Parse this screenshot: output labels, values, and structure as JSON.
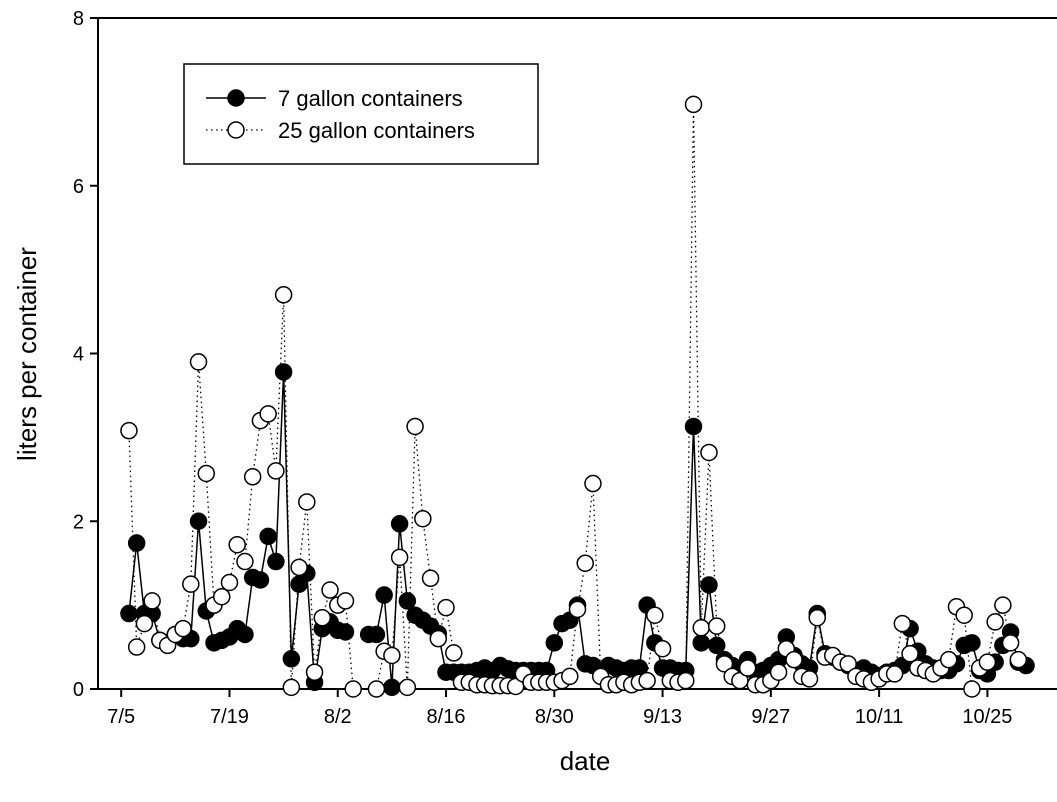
{
  "chart_data": {
    "type": "scatter",
    "title": "",
    "xlabel": "date",
    "ylabel": "liters per container",
    "xlim": [
      "2014-07-02",
      "2014-11-03"
    ],
    "ylim": [
      0,
      8
    ],
    "grid": false,
    "legend_position": "top-left",
    "x_ticks": [
      "2014-07-05",
      "2014-07-19",
      "2014-08-02",
      "2014-08-16",
      "2014-08-30",
      "2014-09-13",
      "2014-09-27",
      "2014-10-11",
      "2014-10-25"
    ],
    "x_tick_labels": [
      "7/5",
      "7/19",
      "8/2",
      "8/16",
      "8/30",
      "9/13",
      "9/27",
      "10/11",
      "10/25"
    ],
    "y_ticks": [
      0,
      2,
      4,
      6,
      8
    ],
    "y_tick_labels": [
      "0",
      "2",
      "4",
      "6",
      "8"
    ],
    "series": [
      {
        "name": "7 gallon containers",
        "line_style": "solid",
        "marker": "filled-circle",
        "color": "#000000",
        "segments": [
          [
            [
              "2014-07-06",
              0.9
            ],
            [
              "2014-07-07",
              1.74
            ],
            [
              "2014-07-08",
              0.9
            ],
            [
              "2014-07-09",
              0.9
            ],
            [
              "2014-07-10",
              0.58
            ],
            [
              "2014-07-11",
              0.55
            ],
            [
              "2014-07-12",
              0.65
            ],
            [
              "2014-07-13",
              0.6
            ],
            [
              "2014-07-14",
              0.6
            ],
            [
              "2014-07-15",
              2.0
            ],
            [
              "2014-07-16",
              0.93
            ],
            [
              "2014-07-17",
              0.55
            ],
            [
              "2014-07-18",
              0.58
            ],
            [
              "2014-07-19",
              0.62
            ],
            [
              "2014-07-20",
              0.72
            ],
            [
              "2014-07-21",
              0.65
            ],
            [
              "2014-07-22",
              1.33
            ],
            [
              "2014-07-23",
              1.3
            ],
            [
              "2014-07-24",
              1.82
            ],
            [
              "2014-07-25",
              1.52
            ],
            [
              "2014-07-26",
              3.78
            ],
            [
              "2014-07-27",
              0.36
            ],
            [
              "2014-07-28",
              1.25
            ],
            [
              "2014-07-29",
              1.38
            ],
            [
              "2014-07-30",
              0.08
            ],
            [
              "2014-07-31",
              0.72
            ],
            [
              "2014-08-01",
              0.8
            ],
            [
              "2014-08-02",
              0.7
            ],
            [
              "2014-08-03",
              0.68
            ]
          ],
          [
            [
              "2014-08-06",
              0.65
            ],
            [
              "2014-08-07",
              0.65
            ],
            [
              "2014-08-08",
              1.12
            ],
            [
              "2014-08-09",
              0.02
            ],
            [
              "2014-08-10",
              1.97
            ],
            [
              "2014-08-11",
              1.05
            ],
            [
              "2014-08-12",
              0.88
            ],
            [
              "2014-08-13",
              0.82
            ],
            [
              "2014-08-14",
              0.75
            ],
            [
              "2014-08-15",
              0.66
            ],
            [
              "2014-08-16",
              0.2
            ],
            [
              "2014-08-17",
              0.2
            ],
            [
              "2014-08-18",
              0.2
            ],
            [
              "2014-08-19",
              0.2
            ],
            [
              "2014-08-20",
              0.22
            ],
            [
              "2014-08-21",
              0.25
            ],
            [
              "2014-08-22",
              0.22
            ],
            [
              "2014-08-23",
              0.28
            ],
            [
              "2014-08-24",
              0.24
            ],
            [
              "2014-08-25",
              0.22
            ],
            [
              "2014-08-26",
              0.22
            ],
            [
              "2014-08-27",
              0.22
            ],
            [
              "2014-08-28",
              0.22
            ],
            [
              "2014-08-29",
              0.22
            ],
            [
              "2014-08-30",
              0.55
            ],
            [
              "2014-08-31",
              0.78
            ],
            [
              "2014-09-01",
              0.82
            ],
            [
              "2014-09-02",
              1.0
            ],
            [
              "2014-09-03",
              0.3
            ],
            [
              "2014-09-04",
              0.28
            ],
            [
              "2014-09-05",
              0.22
            ],
            [
              "2014-09-06",
              0.28
            ],
            [
              "2014-09-07",
              0.25
            ],
            [
              "2014-09-08",
              0.22
            ],
            [
              "2014-09-09",
              0.25
            ],
            [
              "2014-09-10",
              0.25
            ],
            [
              "2014-09-11",
              1.0
            ],
            [
              "2014-09-12",
              0.55
            ],
            [
              "2014-09-13",
              0.25
            ],
            [
              "2014-09-14",
              0.25
            ],
            [
              "2014-09-15",
              0.22
            ],
            [
              "2014-09-16",
              0.22
            ],
            [
              "2014-09-17",
              3.13
            ],
            [
              "2014-09-18",
              0.55
            ],
            [
              "2014-09-19",
              1.24
            ],
            [
              "2014-09-20",
              0.52
            ],
            [
              "2014-09-21",
              0.35
            ],
            [
              "2014-09-22",
              0.28
            ],
            [
              "2014-09-23",
              0.25
            ],
            [
              "2014-09-24",
              0.35
            ],
            [
              "2014-09-25",
              0.2
            ],
            [
              "2014-09-26",
              0.22
            ],
            [
              "2014-09-27",
              0.28
            ],
            [
              "2014-09-28",
              0.35
            ],
            [
              "2014-09-29",
              0.62
            ],
            [
              "2014-09-30",
              0.4
            ],
            [
              "2014-10-01",
              0.3
            ],
            [
              "2014-10-02",
              0.25
            ],
            [
              "2014-10-03",
              0.9
            ],
            [
              "2014-10-04",
              0.42
            ],
            [
              "2014-10-05",
              0.38
            ],
            [
              "2014-10-06",
              0.32
            ],
            [
              "2014-10-07",
              0.28
            ],
            [
              "2014-10-08",
              0.22
            ],
            [
              "2014-10-09",
              0.25
            ],
            [
              "2014-10-10",
              0.2
            ],
            [
              "2014-10-11",
              0.16
            ],
            [
              "2014-10-12",
              0.2
            ],
            [
              "2014-10-13",
              0.22
            ],
            [
              "2014-10-14",
              0.28
            ],
            [
              "2014-10-15",
              0.72
            ],
            [
              "2014-10-16",
              0.45
            ],
            [
              "2014-10-17",
              0.3
            ],
            [
              "2014-10-18",
              0.25
            ],
            [
              "2014-10-19",
              0.22
            ],
            [
              "2014-10-20",
              0.22
            ],
            [
              "2014-10-21",
              0.3
            ],
            [
              "2014-10-22",
              0.52
            ],
            [
              "2014-10-23",
              0.55
            ],
            [
              "2014-10-24",
              0.22
            ],
            [
              "2014-10-25",
              0.18
            ],
            [
              "2014-10-26",
              0.32
            ],
            [
              "2014-10-27",
              0.52
            ],
            [
              "2014-10-28",
              0.68
            ],
            [
              "2014-10-29",
              0.32
            ],
            [
              "2014-10-30",
              0.28
            ]
          ]
        ]
      },
      {
        "name": "25 gallon containers",
        "line_style": "dotted",
        "marker": "open-circle",
        "color": "#000000",
        "segments": [
          [
            [
              "2014-07-06",
              3.08
            ],
            [
              "2014-07-07",
              0.5
            ],
            [
              "2014-07-08",
              0.78
            ],
            [
              "2014-07-09",
              1.05
            ],
            [
              "2014-07-10",
              0.58
            ],
            [
              "2014-07-11",
              0.52
            ],
            [
              "2014-07-12",
              0.65
            ],
            [
              "2014-07-13",
              0.72
            ],
            [
              "2014-07-14",
              1.25
            ],
            [
              "2014-07-15",
              3.9
            ],
            [
              "2014-07-16",
              2.57
            ],
            [
              "2014-07-17",
              1.0
            ],
            [
              "2014-07-18",
              1.1
            ],
            [
              "2014-07-19",
              1.27
            ],
            [
              "2014-07-20",
              1.72
            ],
            [
              "2014-07-21",
              1.52
            ],
            [
              "2014-07-22",
              2.53
            ],
            [
              "2014-07-23",
              3.2
            ],
            [
              "2014-07-24",
              3.28
            ],
            [
              "2014-07-25",
              2.6
            ],
            [
              "2014-07-26",
              4.7
            ],
            [
              "2014-07-27",
              0.02
            ],
            [
              "2014-07-28",
              1.45
            ],
            [
              "2014-07-29",
              2.23
            ],
            [
              "2014-07-30",
              0.2
            ],
            [
              "2014-07-31",
              0.85
            ],
            [
              "2014-08-01",
              1.18
            ],
            [
              "2014-08-02",
              1.0
            ],
            [
              "2014-08-03",
              1.05
            ],
            [
              "2014-08-04",
              0.0
            ]
          ],
          [
            [
              "2014-08-07",
              0.0
            ],
            [
              "2014-08-08",
              0.45
            ],
            [
              "2014-08-09",
              0.4
            ],
            [
              "2014-08-10",
              1.57
            ],
            [
              "2014-08-11",
              0.02
            ],
            [
              "2014-08-12",
              3.13
            ],
            [
              "2014-08-13",
              2.03
            ],
            [
              "2014-08-14",
              1.32
            ],
            [
              "2014-08-15",
              0.6
            ],
            [
              "2014-08-16",
              0.97
            ],
            [
              "2014-08-17",
              0.43
            ],
            [
              "2014-08-18",
              0.08
            ],
            [
              "2014-08-19",
              0.08
            ],
            [
              "2014-08-20",
              0.05
            ],
            [
              "2014-08-21",
              0.05
            ],
            [
              "2014-08-22",
              0.04
            ],
            [
              "2014-08-23",
              0.04
            ],
            [
              "2014-08-24",
              0.04
            ],
            [
              "2014-08-25",
              0.03
            ],
            [
              "2014-08-26",
              0.18
            ],
            [
              "2014-08-27",
              0.08
            ],
            [
              "2014-08-28",
              0.08
            ],
            [
              "2014-08-29",
              0.08
            ],
            [
              "2014-08-30",
              0.08
            ],
            [
              "2014-08-31",
              0.1
            ],
            [
              "2014-09-01",
              0.15
            ],
            [
              "2014-09-02",
              0.95
            ],
            [
              "2014-09-03",
              1.5
            ],
            [
              "2014-09-04",
              2.45
            ],
            [
              "2014-09-05",
              0.15
            ],
            [
              "2014-09-06",
              0.05
            ],
            [
              "2014-09-07",
              0.05
            ],
            [
              "2014-09-08",
              0.08
            ],
            [
              "2014-09-09",
              0.05
            ],
            [
              "2014-09-10",
              0.08
            ],
            [
              "2014-09-11",
              0.1
            ],
            [
              "2014-09-12",
              0.88
            ],
            [
              "2014-09-13",
              0.48
            ],
            [
              "2014-09-14",
              0.1
            ],
            [
              "2014-09-15",
              0.08
            ],
            [
              "2014-09-16",
              0.1
            ],
            [
              "2014-09-17",
              6.97
            ],
            [
              "2014-09-18",
              0.73
            ],
            [
              "2014-09-19",
              2.82
            ],
            [
              "2014-09-20",
              0.75
            ],
            [
              "2014-09-21",
              0.3
            ],
            [
              "2014-09-22",
              0.15
            ],
            [
              "2014-09-23",
              0.1
            ],
            [
              "2014-09-24",
              0.25
            ],
            [
              "2014-09-25",
              0.05
            ],
            [
              "2014-09-26",
              0.05
            ],
            [
              "2014-09-27",
              0.1
            ],
            [
              "2014-09-28",
              0.2
            ],
            [
              "2014-09-29",
              0.48
            ],
            [
              "2014-09-30",
              0.35
            ],
            [
              "2014-10-01",
              0.15
            ],
            [
              "2014-10-02",
              0.12
            ],
            [
              "2014-10-03",
              0.85
            ],
            [
              "2014-10-04",
              0.38
            ],
            [
              "2014-10-05",
              0.4
            ],
            [
              "2014-10-06",
              0.32
            ],
            [
              "2014-10-07",
              0.3
            ],
            [
              "2014-10-08",
              0.15
            ],
            [
              "2014-10-09",
              0.12
            ],
            [
              "2014-10-10",
              0.08
            ],
            [
              "2014-10-11",
              0.12
            ],
            [
              "2014-10-12",
              0.18
            ],
            [
              "2014-10-13",
              0.18
            ],
            [
              "2014-10-14",
              0.78
            ],
            [
              "2014-10-15",
              0.42
            ],
            [
              "2014-10-16",
              0.25
            ],
            [
              "2014-10-17",
              0.22
            ],
            [
              "2014-10-18",
              0.18
            ],
            [
              "2014-10-19",
              0.25
            ],
            [
              "2014-10-20",
              0.35
            ],
            [
              "2014-10-21",
              0.98
            ],
            [
              "2014-10-22",
              0.88
            ],
            [
              "2014-10-23",
              0.0
            ],
            [
              "2014-10-24",
              0.25
            ],
            [
              "2014-10-25",
              0.32
            ],
            [
              "2014-10-26",
              0.8
            ],
            [
              "2014-10-27",
              1.0
            ],
            [
              "2014-10-28",
              0.55
            ],
            [
              "2014-10-29",
              0.35
            ]
          ]
        ]
      }
    ]
  }
}
